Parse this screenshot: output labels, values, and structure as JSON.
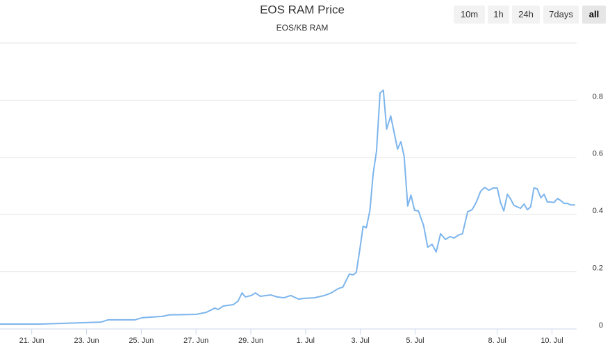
{
  "chart_data": {
    "type": "line",
    "title": "EOS RAM Price",
    "subtitle": "EOS/KB RAM",
    "range_buttons": [
      "10m",
      "1h",
      "24h",
      "7days",
      "all"
    ],
    "selected_range": "all",
    "xlim": [
      19.84,
      40.9
    ],
    "xticks": [
      {
        "value": 21,
        "label": "21. Jun"
      },
      {
        "value": 23,
        "label": "23. Jun"
      },
      {
        "value": 25,
        "label": "25. Jun"
      },
      {
        "value": 27,
        "label": "27. Jun"
      },
      {
        "value": 29,
        "label": "29. Jun"
      },
      {
        "value": 31,
        "label": "1. Jul"
      },
      {
        "value": 33,
        "label": "3. Jul"
      },
      {
        "value": 35,
        "label": "5. Jul"
      },
      {
        "value": 38,
        "label": "8. Jul"
      },
      {
        "value": 40,
        "label": "10. Jul"
      }
    ],
    "ylim": [
      0,
      1
    ],
    "yticks": [
      0,
      0.2,
      0.4,
      0.6,
      0.8
    ],
    "grid": true,
    "series": [
      {
        "color": "#7cb5ec",
        "x": [
          19.84,
          21.32,
          23.54,
          23.79,
          24.78,
          25.02,
          25.77,
          26.01,
          27.0,
          27.37,
          27.69,
          27.81,
          27.99,
          28.36,
          28.53,
          28.68,
          28.8,
          29.02,
          29.17,
          29.35,
          29.72,
          29.96,
          30.21,
          30.46,
          30.75,
          30.95,
          31.32,
          31.69,
          31.94,
          32.19,
          32.36,
          32.6,
          32.73,
          32.85,
          32.98,
          33.1,
          33.22,
          33.35,
          33.47,
          33.59,
          33.72,
          33.84,
          33.96,
          34.11,
          34.23,
          34.36,
          34.48,
          34.6,
          34.73,
          34.85,
          34.98,
          35.12,
          35.31,
          35.46,
          35.62,
          35.77,
          35.93,
          36.11,
          36.27,
          36.42,
          36.58,
          36.73,
          36.92,
          37.08,
          37.23,
          37.39,
          37.54,
          37.7,
          37.85,
          38.0,
          38.12,
          38.24,
          38.37,
          38.49,
          38.61,
          38.73,
          38.85,
          38.98,
          39.1,
          39.22,
          39.34,
          39.46,
          39.59,
          39.71,
          39.83,
          39.95,
          40.07,
          40.2,
          40.32,
          40.44,
          40.56,
          40.68,
          40.85
        ],
        "values": [
          0.017,
          0.017,
          0.024,
          0.032,
          0.032,
          0.039,
          0.044,
          0.049,
          0.051,
          0.058,
          0.073,
          0.068,
          0.08,
          0.085,
          0.097,
          0.126,
          0.112,
          0.117,
          0.126,
          0.114,
          0.119,
          0.112,
          0.109,
          0.117,
          0.104,
          0.107,
          0.109,
          0.117,
          0.126,
          0.141,
          0.146,
          0.192,
          0.189,
          0.197,
          0.277,
          0.359,
          0.354,
          0.415,
          0.544,
          0.621,
          0.825,
          0.835,
          0.699,
          0.745,
          0.689,
          0.629,
          0.655,
          0.604,
          0.43,
          0.468,
          0.415,
          0.413,
          0.362,
          0.286,
          0.296,
          0.269,
          0.333,
          0.313,
          0.323,
          0.318,
          0.328,
          0.333,
          0.41,
          0.417,
          0.442,
          0.481,
          0.495,
          0.485,
          0.493,
          0.493,
          0.442,
          0.413,
          0.471,
          0.454,
          0.432,
          0.427,
          0.422,
          0.437,
          0.417,
          0.427,
          0.493,
          0.49,
          0.459,
          0.471,
          0.444,
          0.444,
          0.442,
          0.456,
          0.449,
          0.439,
          0.439,
          0.434,
          0.434
        ]
      }
    ]
  }
}
